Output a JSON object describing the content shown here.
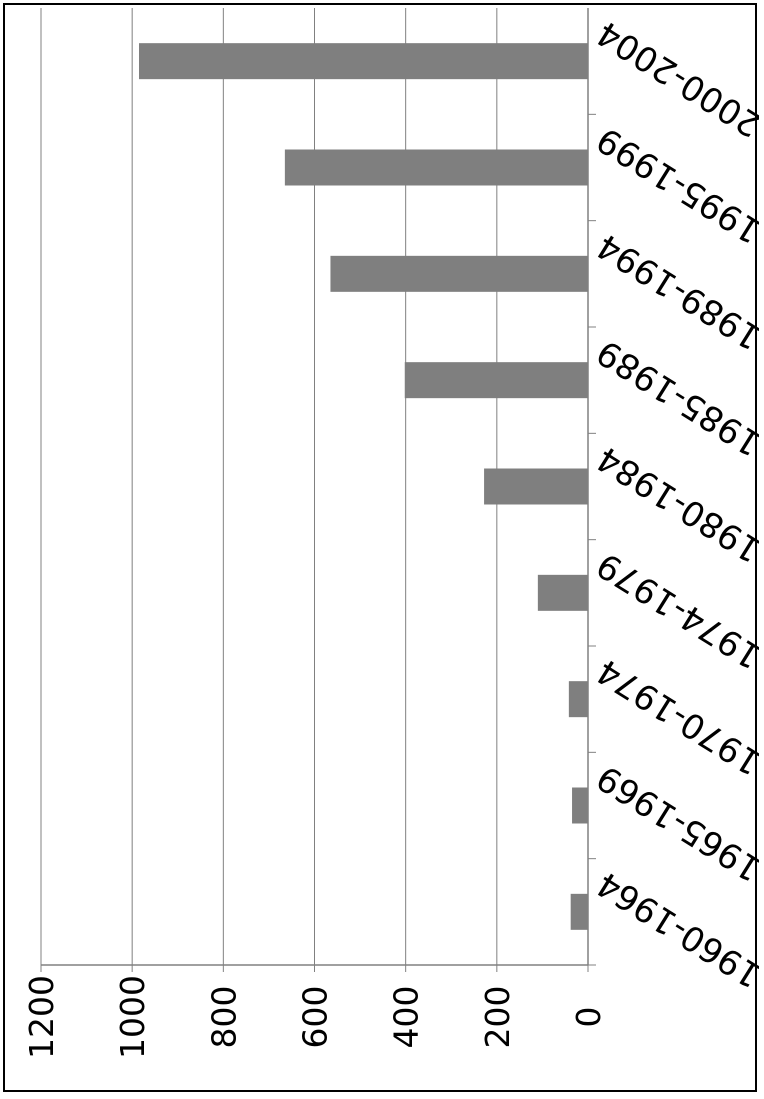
{
  "chart_data": {
    "type": "bar",
    "orientation": "vertical",
    "rendered_rotation_deg": 90,
    "categories": [
      "1960-1964",
      "1965-1969",
      "1970-1974",
      "1974-1979",
      "1980-1984",
      "1985-1989",
      "1989-1994",
      "1995-1999",
      "2000-2004"
    ],
    "values": [
      38,
      35,
      42,
      110,
      228,
      402,
      565,
      665,
      985
    ],
    "title": "",
    "xlabel": "",
    "ylabel": "",
    "ylim": [
      0,
      1200
    ],
    "yticks": [
      0,
      200,
      400,
      600,
      800,
      1000,
      1200
    ],
    "grid": true,
    "bar_color": "#7f7f7f",
    "grid_color": "#808080"
  }
}
